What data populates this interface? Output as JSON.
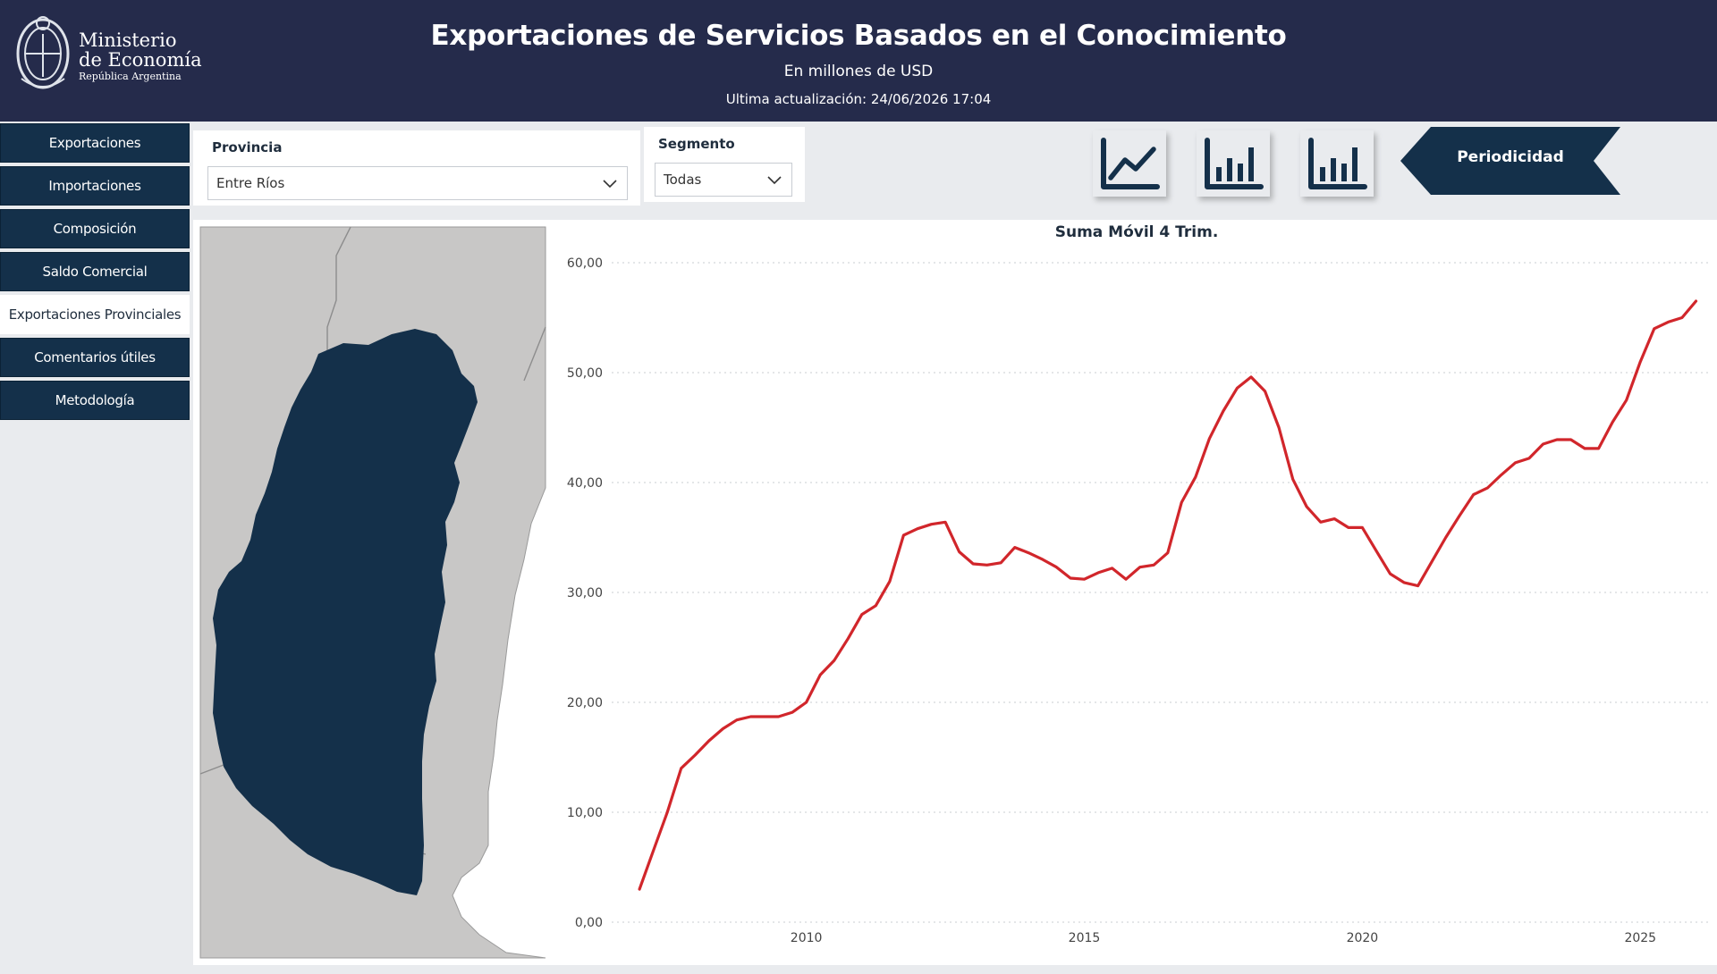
{
  "header": {
    "logo_line1": "Ministerio",
    "logo_line2": "de Economía",
    "logo_line3": "República Argentina",
    "title": "Exportaciones de Servicios Basados en el Conocimiento",
    "subtitle": "En millones de USD",
    "updated": "Ultima actualización: 24/06/2026 17:04"
  },
  "nav": {
    "items": [
      {
        "label": "Exportaciones",
        "active": false
      },
      {
        "label": "Importaciones",
        "active": false
      },
      {
        "label": "Composición",
        "active": false
      },
      {
        "label": "Saldo Comercial",
        "active": false
      },
      {
        "label": "Exportaciones Provinciales",
        "active": true
      },
      {
        "label": "Comentarios útiles",
        "active": false
      },
      {
        "label": "Metodología",
        "active": false
      }
    ]
  },
  "filters": {
    "provincia": {
      "label": "Provincia",
      "value": "Entre Ríos"
    },
    "segmento": {
      "label": "Segmento",
      "value": "Todas"
    }
  },
  "toolbar": {
    "icons": [
      "line-chart-icon",
      "bar-chart-icon",
      "bar-chart-alt-icon"
    ],
    "periodicity_label": "Periodicidad"
  },
  "colors": {
    "header_bg": "#252b4b",
    "nav_bg": "#14304a",
    "map_highlight": "#14304a",
    "map_other": "#c8c7c6",
    "line": "#d1262b"
  },
  "map": {
    "highlighted_province": "Entre Ríos"
  },
  "chart_data": {
    "type": "line",
    "title": "Suma Móvil 4 Trim.",
    "xlabel": "",
    "ylabel": "",
    "ylim": [
      0,
      60
    ],
    "y_ticks": [
      "0,00",
      "10,00",
      "20,00",
      "30,00",
      "40,00",
      "50,00",
      "60,00"
    ],
    "x_ticks": [
      "2010",
      "2015",
      "2020",
      "2025"
    ],
    "x_tick_values": [
      2010,
      2015,
      2020,
      2025
    ],
    "xlim": [
      2006.5,
      2026.25
    ],
    "grid": true,
    "series": [
      {
        "color": "#d1262b",
        "x": [
          2007.0,
          2007.25,
          2007.5,
          2007.75,
          2008.0,
          2008.25,
          2008.5,
          2008.75,
          2009.0,
          2009.25,
          2009.5,
          2009.75,
          2010.0,
          2010.25,
          2010.5,
          2010.75,
          2011.0,
          2011.25,
          2011.5,
          2011.75,
          2012.0,
          2012.25,
          2012.5,
          2012.75,
          2013.0,
          2013.25,
          2013.5,
          2013.75,
          2014.0,
          2014.25,
          2014.5,
          2014.75,
          2015.0,
          2015.25,
          2015.5,
          2015.75,
          2016.0,
          2016.25,
          2016.5,
          2016.75,
          2017.0,
          2017.25,
          2017.5,
          2017.75,
          2018.0,
          2018.25,
          2018.5,
          2018.75,
          2019.0,
          2019.25,
          2019.5,
          2019.75,
          2020.0,
          2020.25,
          2020.5,
          2020.75,
          2021.0,
          2021.25,
          2021.5,
          2021.75,
          2022.0,
          2022.25,
          2022.5,
          2022.75,
          2023.0,
          2023.25,
          2023.5,
          2023.75,
          2024.0,
          2024.25,
          2024.5,
          2024.75,
          2025.0,
          2025.25,
          2025.5,
          2025.75,
          2026.0
        ],
        "y": [
          3.0,
          6.5,
          10.0,
          14.0,
          15.2,
          16.5,
          17.6,
          18.4,
          18.7,
          18.7,
          18.7,
          19.1,
          20.0,
          22.5,
          23.8,
          25.8,
          28.0,
          28.8,
          31.0,
          35.2,
          35.8,
          36.2,
          36.4,
          33.7,
          32.6,
          32.5,
          32.7,
          34.1,
          33.6,
          33.0,
          32.3,
          31.3,
          31.2,
          31.8,
          32.2,
          31.2,
          32.3,
          32.5,
          33.6,
          38.2,
          40.5,
          44.0,
          46.5,
          48.6,
          49.6,
          48.3,
          45.0,
          40.3,
          37.8,
          36.4,
          36.7,
          35.9,
          35.9,
          33.8,
          31.7,
          30.9,
          30.6,
          32.8,
          35.0,
          37.0,
          38.9,
          39.5,
          40.7,
          41.8,
          42.2,
          43.5,
          43.9,
          43.9,
          43.1,
          43.1,
          45.5,
          47.5,
          51.0,
          54.0,
          54.6,
          55.0,
          56.5
        ]
      }
    ]
  }
}
